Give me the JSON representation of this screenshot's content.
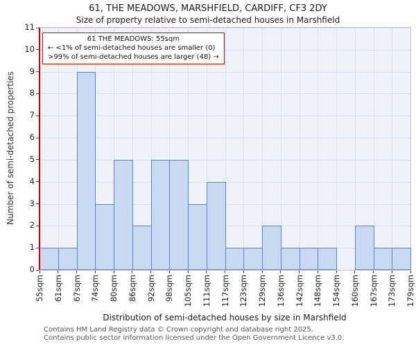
{
  "title": {
    "line1": "61, THE MEADOWS, MARSHFIELD, CARDIFF, CF3 2DY",
    "line2": "Size of property relative to semi-detached houses in Marshfield"
  },
  "annotation": {
    "line1": "61 THE MEADOWS: 55sqm",
    "line2": "← <1% of semi-detached houses are smaller (0)",
    "line3": ">99% of semi-detached houses are larger (48) →"
  },
  "chart_data": {
    "type": "bar",
    "title": "Size of property relative to semi-detached houses in Marshfield",
    "xlabel": "Distribution of semi-detached houses by size in Marshfield",
    "ylabel": "Number of semi-detached properties",
    "bin_edge_labels": [
      "55sqm",
      "61sqm",
      "67sqm",
      "74sqm",
      "80sqm",
      "86sqm",
      "92sqm",
      "98sqm",
      "105sqm",
      "111sqm",
      "117sqm",
      "123sqm",
      "129sqm",
      "136sqm",
      "142sqm",
      "148sqm",
      "154sqm",
      "160sqm",
      "167sqm",
      "173sqm",
      "179sqm"
    ],
    "values": [
      1,
      1,
      9,
      3,
      5,
      2,
      5,
      5,
      3,
      4,
      1,
      1,
      2,
      1,
      1,
      1,
      0,
      2,
      1,
      1
    ],
    "ylim": [
      0,
      11
    ],
    "yticks": [
      0,
      1,
      2,
      3,
      4,
      5,
      6,
      7,
      8,
      9,
      10,
      11
    ],
    "grid": true,
    "legend": "none",
    "bar_fill": "#c9d9f2",
    "bar_edge": "#5b84c4",
    "marker_color": "#cc0000",
    "marker_value_label": "55sqm"
  },
  "footer": {
    "line1": "Contains HM Land Registry data © Crown copyright and database right 2025.",
    "line2": "Contains public sector information licensed under the Open Government Licence v3.0."
  }
}
